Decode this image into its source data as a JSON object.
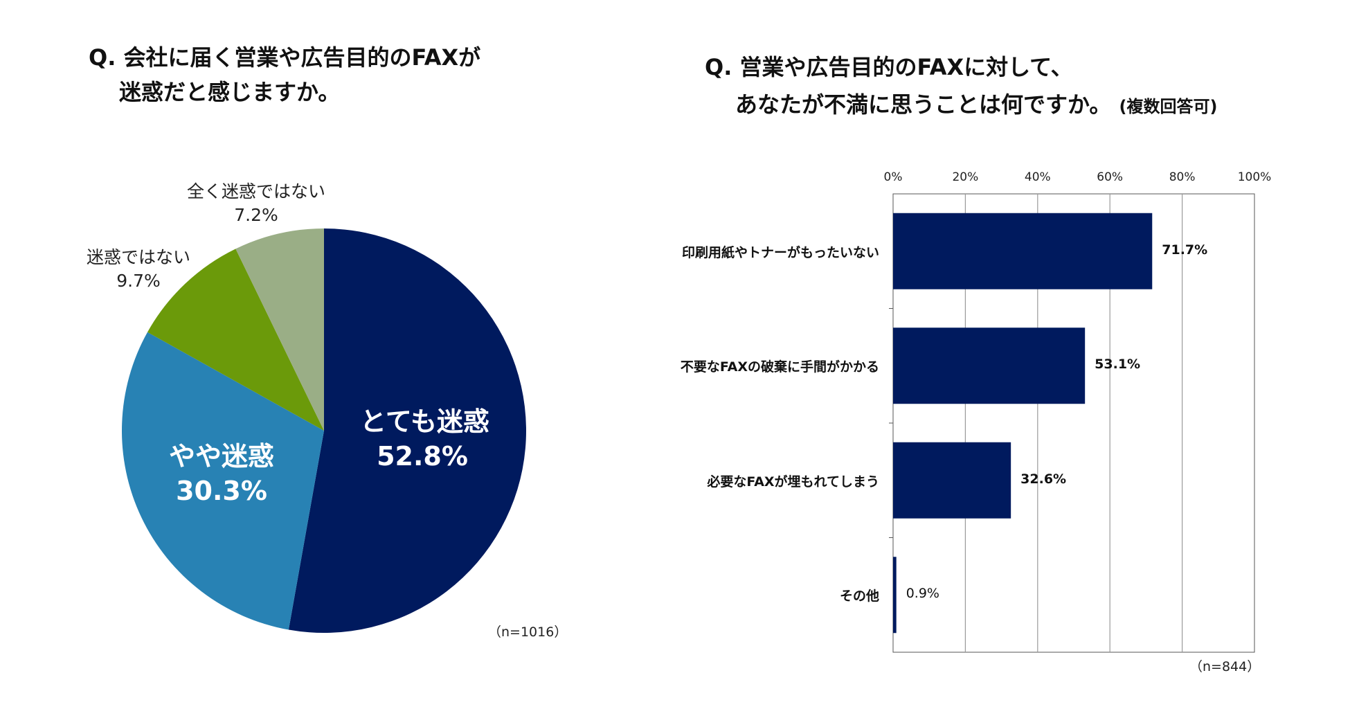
{
  "chart_data": [
    {
      "type": "pie",
      "title_line1": "Q. 会社に届く営業や広告目的のFAXが",
      "title_line2": "迷惑だと感じますか。",
      "note": "（n=1016）",
      "slices": [
        {
          "label": "とても迷惑",
          "value": 52.8,
          "value_label": "52.8%",
          "color": "#001a5e"
        },
        {
          "label": "やや迷惑",
          "value": 30.3,
          "value_label": "30.3%",
          "color": "#2882b4"
        },
        {
          "label": "迷惑ではない",
          "value": 9.7,
          "value_label": "9.7%",
          "color": "#6b9a0a"
        },
        {
          "label": "全く迷惑ではない",
          "value": 7.2,
          "value_label": "7.2%",
          "color": "#9aae86"
        }
      ]
    },
    {
      "type": "bar",
      "orientation": "horizontal",
      "title_line1": "Q. 営業や広告目的のFAXに対して、",
      "title_line2": "あなたが不満に思うことは何ですか。",
      "title_suffix": "(複数回答可)",
      "note": "（n=844）",
      "xlim": [
        0,
        100
      ],
      "ticks": [
        "0%",
        "20%",
        "40%",
        "60%",
        "80%",
        "100%"
      ],
      "grid": true,
      "bar_color": "#001a5e",
      "categories": [
        "印刷用紙やトナーがもったいない",
        "不要なFAXの破棄に手間がかかる",
        "必要なFAXが埋もれてしまう",
        "その他"
      ],
      "values": [
        71.7,
        53.1,
        32.6,
        0.9
      ],
      "value_labels": [
        "71.7%",
        "53.1%",
        "32.6%",
        "0.9%"
      ]
    }
  ]
}
